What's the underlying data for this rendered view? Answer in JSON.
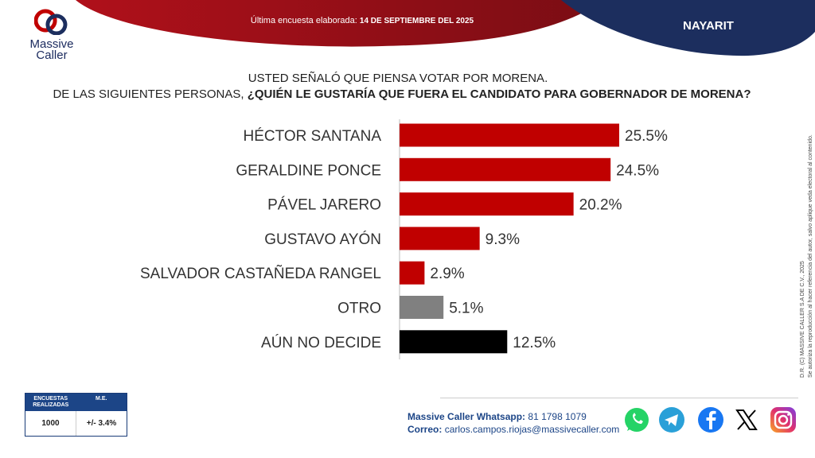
{
  "brand": {
    "name_line1": "Massive",
    "name_line2": "Caller"
  },
  "header": {
    "survey_label": "Última encuesta elaborada:",
    "survey_date": "14 DE SEPTIEMBRE DEL 2025",
    "region": "NAYARIT"
  },
  "question": {
    "line1": "USTED SEÑALÓ QUE PIENSA VOTAR POR MORENA.",
    "line2_plain": "DE LAS SIGUIENTES PERSONAS,",
    "line2_bold": " ¿QUIÉN LE GUSTARÍA QUE FUERA EL CANDIDATO PARA GOBERNADOR DE MORENA?"
  },
  "chart_data": {
    "type": "bar",
    "orientation": "horizontal",
    "categories": [
      "HÉCTOR SANTANA",
      "GERALDINE PONCE",
      "PÁVEL JARERO",
      "GUSTAVO AYÓN",
      "SALVADOR CASTAÑEDA RANGEL",
      "OTRO",
      "AÚN NO DECIDE"
    ],
    "values": [
      25.5,
      24.5,
      20.2,
      9.3,
      2.9,
      5.1,
      12.5
    ],
    "labels": [
      "25.5%",
      "24.5%",
      "20.2%",
      "9.3%",
      "2.9%",
      "5.1%",
      "12.5%"
    ],
    "colors": [
      "#c00000",
      "#c00000",
      "#c00000",
      "#c00000",
      "#c00000",
      "#808080",
      "#000000"
    ],
    "title": "",
    "xlabel": "",
    "ylabel": "",
    "xlim": [
      0,
      25.5
    ],
    "grid": false,
    "legend": "none"
  },
  "side_note": {
    "line1": "D.R. (C) MASSIVE CALLER S.A DE C.V., 2025",
    "line2": "Se autoriza la reproducción al hacer referencia del autor, salvo aplique veda electoral al contenido."
  },
  "stats": {
    "surveys_header": "ENCUESTAS REALIZADAS",
    "me_header": "M.E.",
    "surveys_value": "1000",
    "me_value": "+/- 3.4%"
  },
  "contact": {
    "whatsapp_label": "Massive Caller Whatsapp:",
    "whatsapp_number": "81 1798 1079",
    "email_label": "Correo:",
    "email_value": "carlos.campos.riojas@massivecaller.com"
  },
  "social_icons": [
    "whatsapp-icon",
    "telegram-icon",
    "facebook-icon",
    "x-icon",
    "instagram-icon"
  ],
  "colors": {
    "red": "#c00000",
    "navy": "#1c2e5e",
    "gray": "#808080",
    "black": "#000000",
    "blue": "#1c4587"
  }
}
